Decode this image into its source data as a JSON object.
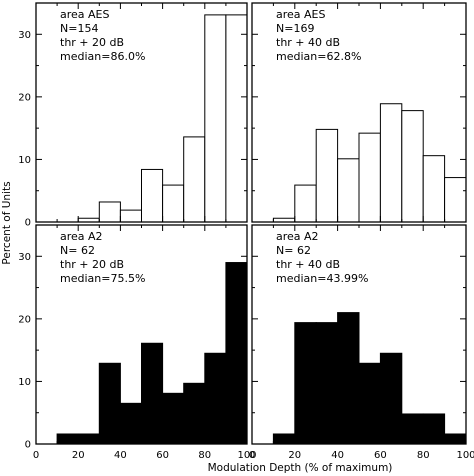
{
  "figure": {
    "ylabel": "Percent of Units",
    "xlabel": "Modulation Depth (% of maximum)"
  },
  "chart_data": [
    {
      "type": "bar",
      "fill": "open",
      "annotations": [
        "area AES",
        "N=154",
        "thr + 20 dB",
        "median=86.0%"
      ],
      "bin_edges": [
        0,
        10,
        20,
        30,
        40,
        50,
        60,
        70,
        80,
        90,
        100
      ],
      "values": [
        0,
        0,
        0.6,
        3.2,
        1.9,
        8.4,
        5.9,
        13.6,
        33.1,
        33.1
      ],
      "xlim": [
        0,
        100
      ],
      "ylim": [
        0,
        35
      ],
      "yticks": [
        0,
        10,
        20,
        30
      ],
      "xticks": [
        0,
        20,
        40,
        60,
        80,
        100
      ]
    },
    {
      "type": "bar",
      "fill": "open",
      "annotations": [
        "area AES",
        "N=169",
        "thr + 40 dB",
        "median=62.8%"
      ],
      "bin_edges": [
        0,
        10,
        20,
        30,
        40,
        50,
        60,
        70,
        80,
        90,
        100
      ],
      "values": [
        0,
        0.6,
        5.9,
        14.8,
        10.1,
        14.2,
        18.9,
        17.8,
        10.6,
        7.1
      ],
      "xlim": [
        0,
        100
      ],
      "ylim": [
        0,
        35
      ],
      "yticks": [
        0,
        10,
        20,
        30
      ],
      "xticks": [
        0,
        20,
        40,
        60,
        80,
        100
      ]
    },
    {
      "type": "bar",
      "fill": "solid",
      "annotations": [
        "area A2",
        "N= 62",
        "thr + 20 dB",
        "median=75.5%"
      ],
      "bin_edges": [
        0,
        10,
        20,
        30,
        40,
        50,
        60,
        70,
        80,
        90,
        100
      ],
      "values": [
        0,
        1.6,
        1.6,
        12.9,
        6.5,
        16.1,
        8.1,
        9.7,
        14.5,
        29.0
      ],
      "xlim": [
        0,
        100
      ],
      "ylim": [
        0,
        35
      ],
      "yticks": [
        0,
        10,
        20,
        30
      ],
      "xticks": [
        0,
        20,
        40,
        60,
        80,
        100
      ]
    },
    {
      "type": "bar",
      "fill": "solid",
      "annotations": [
        "area A2",
        "N= 62",
        "thr + 40 dB",
        "median=43.99%"
      ],
      "bin_edges": [
        0,
        10,
        20,
        30,
        40,
        50,
        60,
        70,
        80,
        90,
        100
      ],
      "values": [
        0,
        1.6,
        19.4,
        19.4,
        21.0,
        12.9,
        14.5,
        4.8,
        4.8,
        1.6
      ],
      "xlim": [
        0,
        100
      ],
      "ylim": [
        0,
        35
      ],
      "yticks": [
        0,
        10,
        20,
        30
      ],
      "xticks": [
        0,
        20,
        40,
        60,
        80,
        100
      ]
    }
  ]
}
